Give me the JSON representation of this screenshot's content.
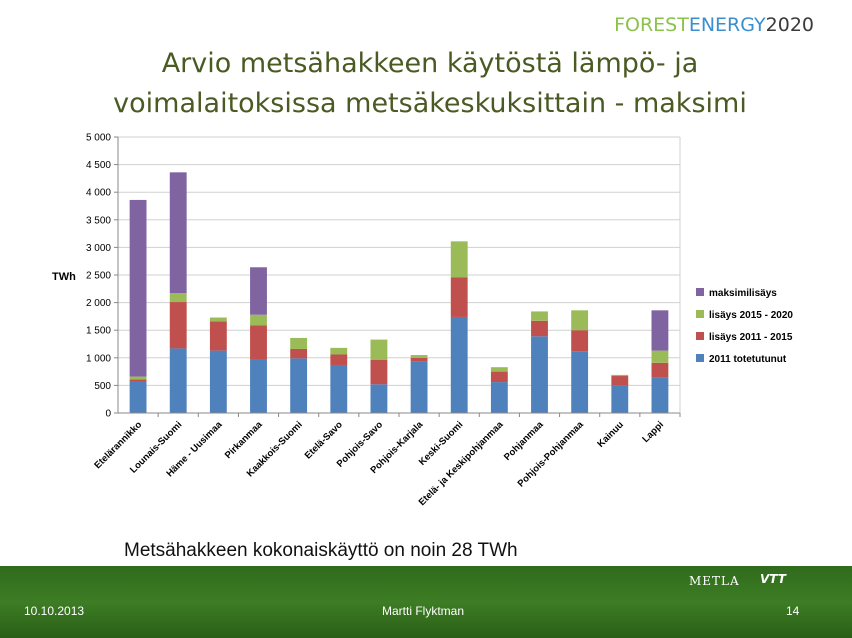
{
  "brand": {
    "part1": "FOREST",
    "part2": "ENERGY",
    "part3": "2020"
  },
  "slide": {
    "title_line1": "Arvio metsähakkeen käytöstä lämpö- ja",
    "title_line2": "voimalaitoksissa metsäkeskuksittain - maksimi",
    "caption": "Metsähakkeen kokonaiskäyttö on noin 28 TWh"
  },
  "footer": {
    "date": "10.10.2013",
    "author": "Martti Flyktman",
    "page": "14",
    "logo_text": "METLA",
    "logo_text2": "VTT"
  },
  "chart_data": {
    "type": "bar",
    "stacked": true,
    "title": "",
    "xlabel": "",
    "ylabel": "TWh",
    "ylim": [
      0,
      5000
    ],
    "yticks": [
      0,
      500,
      1000,
      1500,
      2000,
      2500,
      3000,
      3500,
      4000,
      4500,
      5000
    ],
    "ytick_labels": [
      "0",
      "500",
      "1 000",
      "1 500",
      "2 000",
      "2 500",
      "3 000",
      "3 500",
      "4 000",
      "4 500",
      "5 000"
    ],
    "grid": true,
    "legend_position": "right",
    "categories": [
      "Etelärannikko",
      "Lounais-Suomi",
      "Häme - Uusimaa",
      "Pirkanmaa",
      "Kaakkois-Suomi",
      "Etelä-Savo",
      "Pohjois-Savo",
      "Pohjois-Karjala",
      "Keski-Suomi",
      "Etelä- ja Keskipohjanmaa",
      "Pohjanmaa",
      "Pohjois-Pohjanmaa",
      "Kainuu",
      "Lappi"
    ],
    "series": [
      {
        "name": "2011 totetutunut",
        "color": "#4f81bd",
        "values": [
          570,
          1170,
          1130,
          970,
          990,
          870,
          520,
          940,
          1740,
          560,
          1390,
          1120,
          500,
          640
        ]
      },
      {
        "name": "lisäys 2011 - 2015",
        "color": "#c0504d",
        "values": [
          40,
          840,
          530,
          620,
          170,
          190,
          440,
          60,
          720,
          190,
          280,
          380,
          170,
          270
        ]
      },
      {
        "name": "lisäys 2015 - 2020",
        "color": "#9bbb59",
        "values": [
          50,
          160,
          70,
          190,
          200,
          120,
          370,
          50,
          650,
          80,
          170,
          360,
          20,
          220
        ]
      },
      {
        "name": "maksimilisäys",
        "color": "#8064a2",
        "values": [
          3200,
          2190,
          0,
          860,
          0,
          0,
          0,
          0,
          0,
          0,
          0,
          0,
          0,
          730
        ]
      }
    ]
  }
}
